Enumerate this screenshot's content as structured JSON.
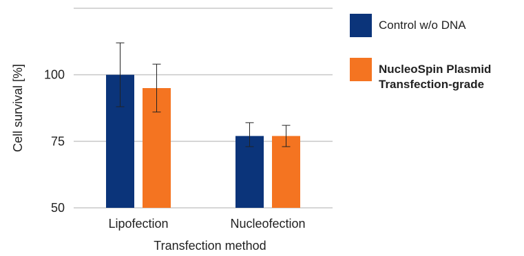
{
  "chart_data": {
    "type": "bar",
    "title": "",
    "xlabel": "Transfection method",
    "ylabel": "Cell survival [%]",
    "categories": [
      "Lipofection",
      "Nucleofection"
    ],
    "ylim": [
      50,
      125
    ],
    "yticks": [
      50,
      75,
      100
    ],
    "grid": true,
    "legend_position": "right",
    "series": [
      {
        "name": "Control w/o DNA",
        "color": "#0b347a",
        "values": [
          100,
          77
        ],
        "error": [
          [
            88,
            112
          ],
          [
            73,
            82
          ]
        ]
      },
      {
        "name": "NucleoSpin Plasmid Transfection-grade",
        "color": "#f47421",
        "values": [
          95,
          77
        ],
        "error": [
          [
            86,
            104
          ],
          [
            73,
            81
          ]
        ]
      }
    ]
  },
  "legend": {
    "items": [
      {
        "label": "Control w/o DNA",
        "color": "#0b347a",
        "bold": false
      },
      {
        "label_line1": "NucleoSpin Plasmid",
        "label_line2": "Transfection-grade",
        "color": "#f47421",
        "bold": true
      }
    ]
  }
}
